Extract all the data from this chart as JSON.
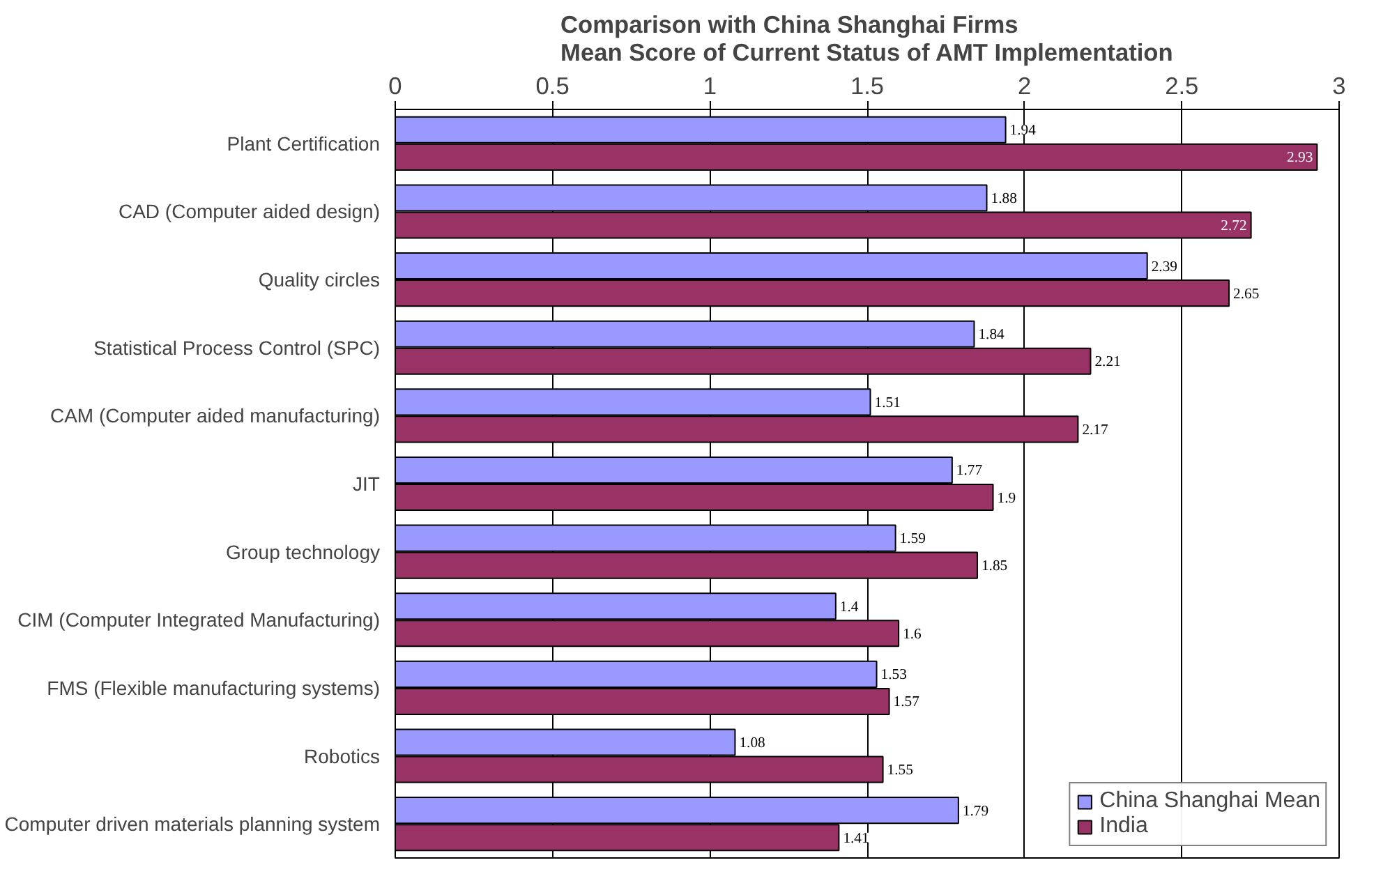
{
  "chart_data": {
    "type": "bar",
    "orientation": "horizontal",
    "title": "Comparison with China Shanghai Firms\nMean Score of Current Status of AMT Implementation",
    "categories": [
      "Plant Certification",
      "CAD (Computer aided design)",
      "Quality circles",
      "Statistical Process Control (SPC)",
      "CAM (Computer aided manufacturing)",
      "JIT",
      "Group technology",
      "CIM (Computer Integrated Manufacturing)",
      "FMS (Flexible manufacturing systems)",
      "Robotics",
      "Computer driven materials planning system"
    ],
    "series": [
      {
        "name": "China Shanghai Mean",
        "color": "#9999ff",
        "values": [
          1.94,
          1.88,
          2.39,
          1.84,
          1.51,
          1.77,
          1.59,
          1.4,
          1.53,
          1.08,
          1.79
        ]
      },
      {
        "name": "India",
        "color": "#993366",
        "values": [
          2.93,
          2.72,
          2.65,
          2.21,
          2.17,
          1.9,
          1.85,
          1.6,
          1.57,
          1.55,
          1.41
        ]
      }
    ],
    "xlim": [
      0,
      3
    ],
    "xticks": [
      0,
      0.5,
      1,
      1.5,
      2,
      2.5,
      3
    ],
    "grid": "x",
    "legend": "bottom right",
    "data_labels": true
  }
}
